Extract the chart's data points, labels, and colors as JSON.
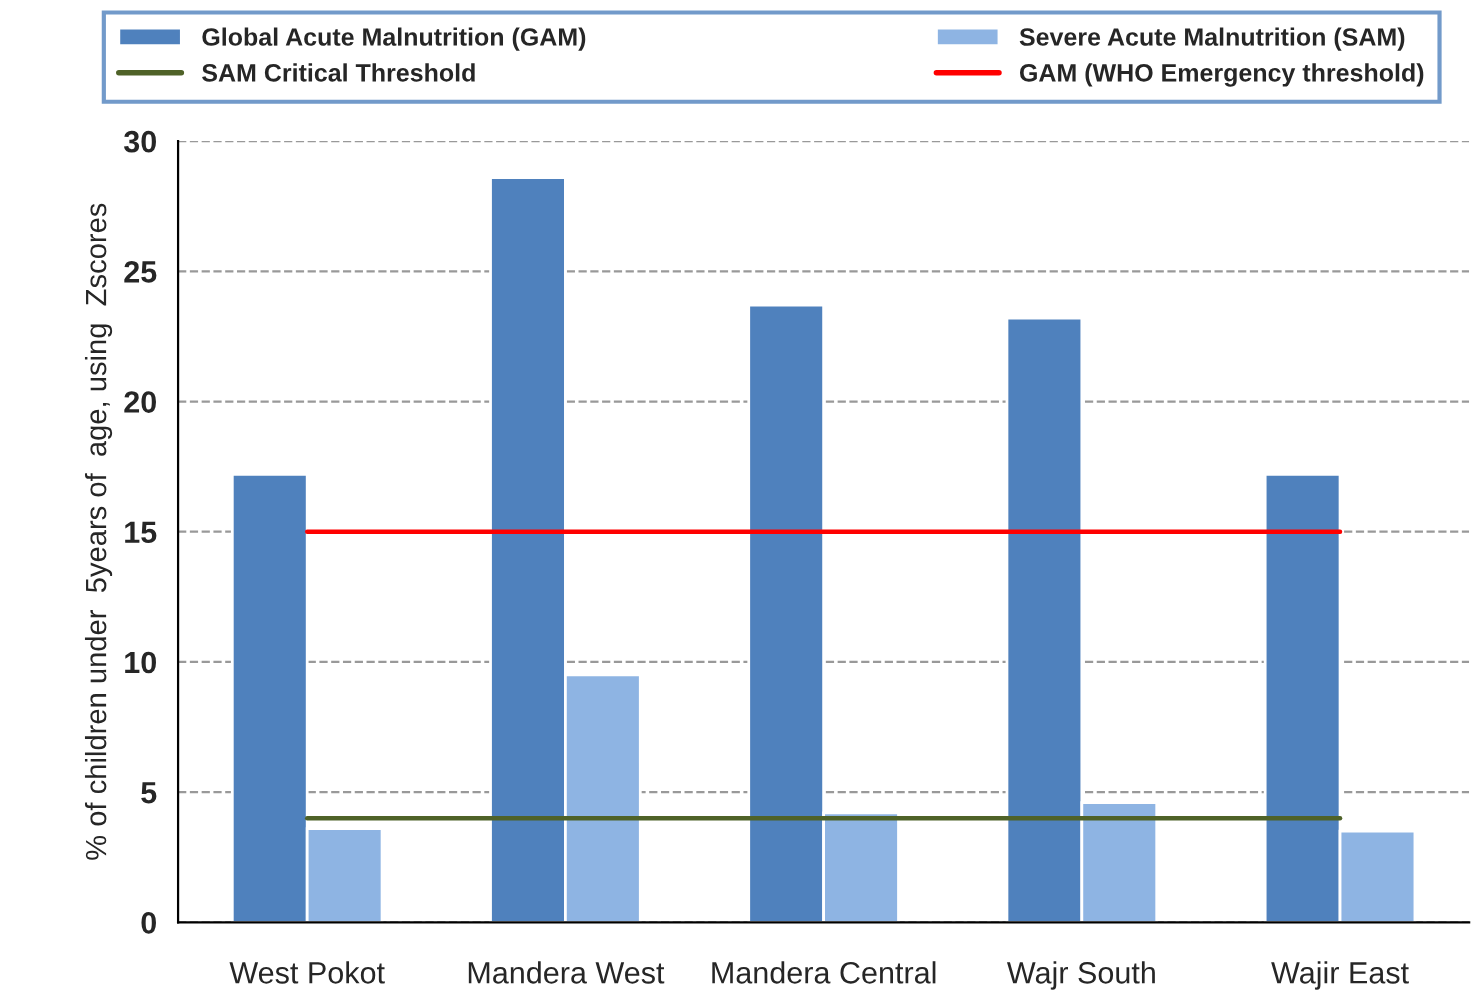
{
  "chart_data": {
    "type": "bar",
    "categories": [
      "West Pokot",
      "Mandera West",
      "Mandera Central",
      "Wajr South",
      "Wajir East"
    ],
    "ylabel": "% of children under  5years of  age, using  Zscores",
    "series": [
      {
        "name": "Global Acute Malnutrition (GAM)",
        "color": "#4f81bd",
        "values": [
          17.2,
          28.6,
          23.7,
          23.2,
          17.2
        ]
      },
      {
        "name": "Severe Acute Malnutrition (SAM)",
        "color": "#8eb4e3",
        "values": [
          3.6,
          9.5,
          4.2,
          4.6,
          3.5
        ]
      },
      {
        "name": "SAM Critical Threshold",
        "type": "line",
        "color": "#4f6228",
        "values": [
          4,
          4,
          4,
          4,
          4
        ]
      },
      {
        "name": "GAM (WHO Emergency threshold)",
        "type": "line",
        "color": "#ff0000",
        "values": [
          15,
          15,
          15,
          15,
          15
        ]
      }
    ],
    "ylim": [
      0,
      30
    ],
    "yticks": [
      0,
      5,
      10,
      15,
      20,
      25,
      30
    ],
    "grid": "y",
    "legend": "top"
  }
}
